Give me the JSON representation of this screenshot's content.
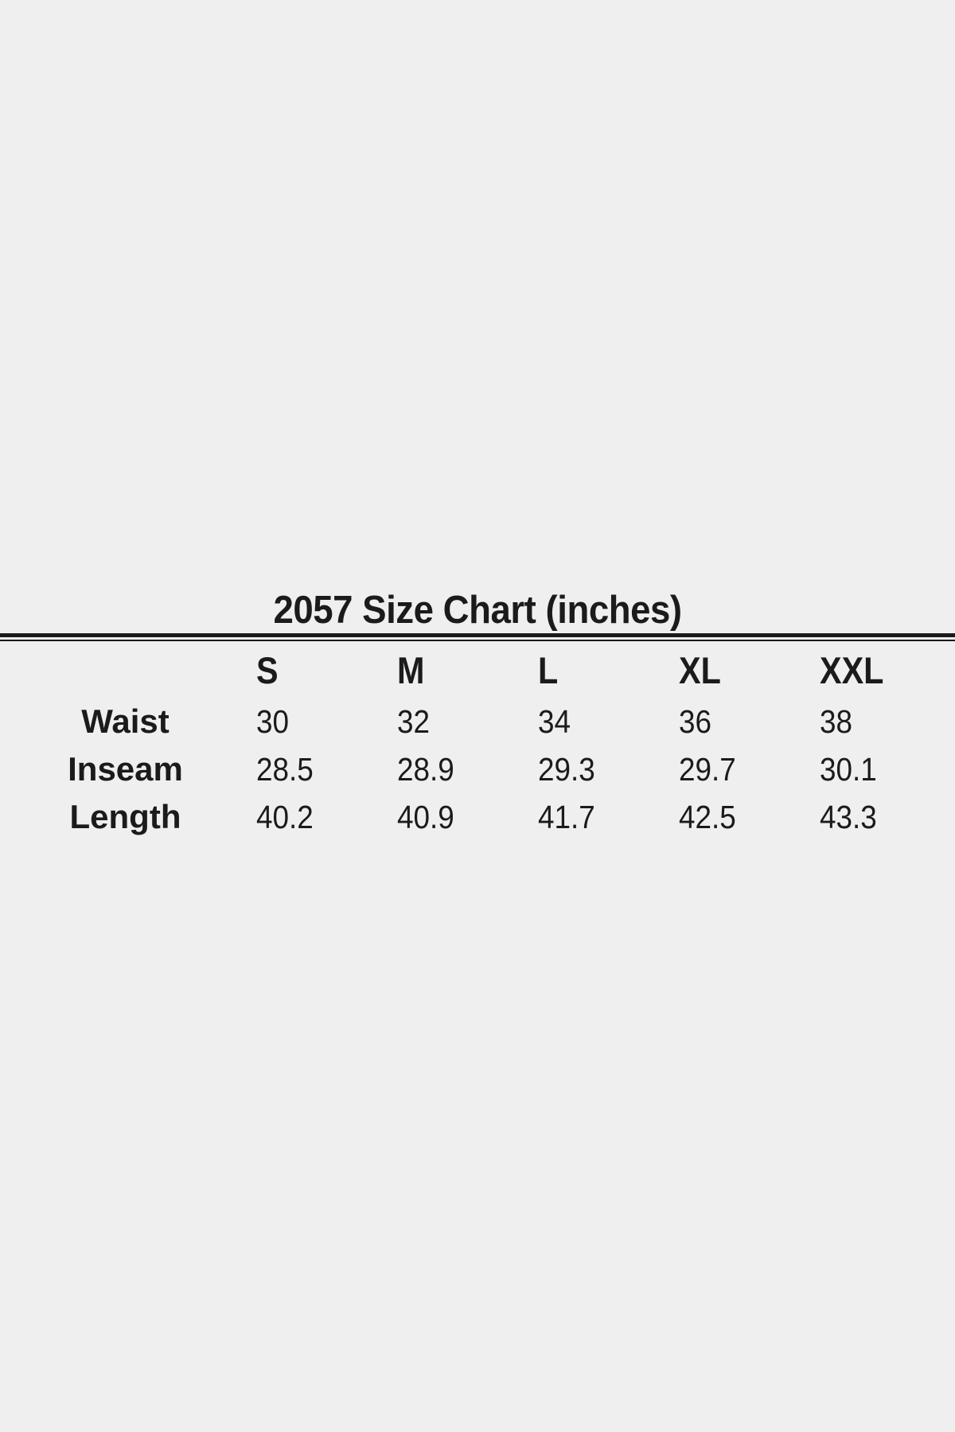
{
  "chart_data": {
    "type": "table",
    "title": "2057 Size Chart (inches)",
    "columns": [
      "S",
      "M",
      "L",
      "XL",
      "XXL"
    ],
    "rows": [
      {
        "label": "Waist",
        "values": [
          "30",
          "32",
          "34",
          "36",
          "38"
        ]
      },
      {
        "label": "Inseam",
        "values": [
          "28.5",
          "28.9",
          "29.3",
          "29.7",
          "30.1"
        ]
      },
      {
        "label": "Length",
        "values": [
          "40.2",
          "40.9",
          "41.7",
          "42.5",
          "43.3"
        ]
      }
    ],
    "layout_hints": {
      "title_position": "top-center",
      "header_row": true,
      "double_rule_under_title": true
    }
  },
  "colors": {
    "background": "#efefef",
    "text": "#1b1b1b",
    "rule": "#1a1a1a"
  }
}
